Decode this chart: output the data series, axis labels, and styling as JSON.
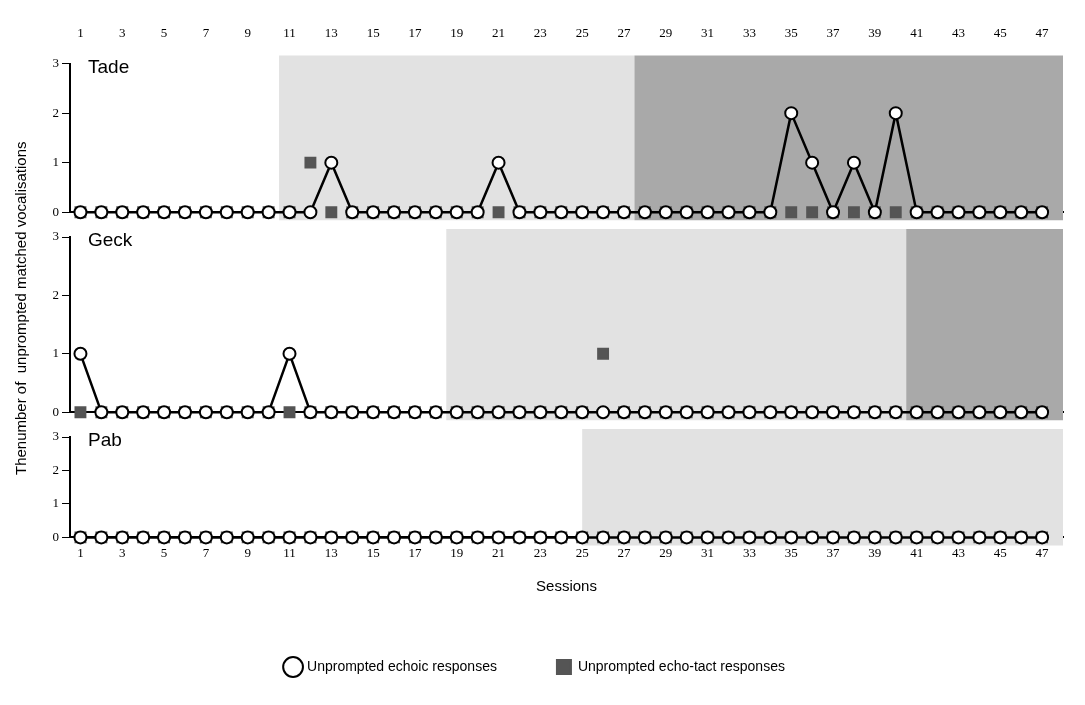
{
  "chart_data": [
    {
      "type": "line",
      "title": "Tade",
      "x": [
        1,
        2,
        3,
        4,
        5,
        6,
        7,
        8,
        9,
        10,
        11,
        12,
        13,
        14,
        15,
        16,
        17,
        18,
        19,
        20,
        21,
        22,
        23,
        24,
        25,
        26,
        27,
        28,
        29,
        30,
        31,
        32,
        33,
        34,
        35,
        36,
        37,
        38,
        39,
        40,
        41,
        42,
        43,
        44,
        45,
        46,
        47
      ],
      "xlim": [
        0.5,
        48
      ],
      "xticks": [
        1,
        3,
        5,
        7,
        9,
        11,
        13,
        15,
        17,
        19,
        21,
        23,
        25,
        27,
        29,
        31,
        33,
        35,
        37,
        39,
        41,
        43,
        45,
        47
      ],
      "x2lim": [
        0.5,
        48
      ],
      "x2ticks": [
        1,
        3,
        5,
        7,
        9,
        11,
        13,
        15,
        17,
        19,
        21,
        23,
        25,
        27,
        29,
        31,
        33,
        35,
        37,
        39,
        41,
        43,
        45,
        47
      ],
      "ylim": [
        0,
        3
      ],
      "yticks": [
        0,
        1,
        2,
        3
      ],
      "tick_labels": "y",
      "grid": false,
      "bands": [
        {
          "axis": "x",
          "from": 10.5,
          "to": 27.5,
          "color": "#e2e2e2"
        },
        {
          "axis": "x",
          "from": 27.5,
          "to": 48,
          "color": "#a9a9a9"
        }
      ],
      "series": [
        {
          "type": "line",
          "color": "#000000",
          "marker": "circle",
          "values": [
            0,
            0,
            0,
            0,
            0,
            0,
            0,
            0,
            0,
            0,
            0,
            0,
            1,
            0,
            0,
            0,
            0,
            0,
            0,
            0,
            1,
            0,
            0,
            0,
            0,
            0,
            0,
            0,
            0,
            0,
            0,
            0,
            0,
            0,
            2,
            1,
            0,
            1,
            0,
            2,
            0,
            0,
            0,
            0,
            0,
            0,
            0
          ]
        },
        {
          "type": "scatter",
          "color": "#555555",
          "marker": "square",
          "values": [
            0,
            0,
            0,
            0,
            0,
            0,
            0,
            0,
            0,
            0,
            0,
            1,
            0,
            0,
            0,
            0,
            0,
            0,
            0,
            0,
            0,
            0,
            0,
            0,
            0,
            0,
            0,
            0,
            0,
            0,
            0,
            0,
            0,
            0,
            0,
            0,
            0,
            0,
            0,
            0,
            0,
            0,
            0,
            0,
            0,
            0,
            0
          ]
        }
      ]
    },
    {
      "type": "line",
      "title": "Geck",
      "ylabel": "Thenumber of  unprompted matched vocalisations",
      "x": [
        1,
        2,
        3,
        4,
        5,
        6,
        7,
        8,
        9,
        10,
        11,
        12,
        13,
        14,
        15,
        16,
        17,
        18,
        19,
        20,
        21,
        22,
        23,
        24,
        25,
        26,
        27,
        28,
        29,
        30,
        31,
        32,
        33,
        34,
        35,
        36,
        37,
        38,
        39,
        40,
        41,
        42,
        43,
        44,
        45,
        46,
        47
      ],
      "xlim": [
        0.5,
        48
      ],
      "xticks": [
        1,
        3,
        5,
        7,
        9,
        11,
        13,
        15,
        17,
        19,
        21,
        23,
        25,
        27,
        29,
        31,
        33,
        35,
        37,
        39,
        41,
        43,
        45,
        47
      ],
      "ylim": [
        0,
        3
      ],
      "yticks": [
        0,
        1,
        2,
        3
      ],
      "tick_labels": "y",
      "grid": false,
      "bands": [
        {
          "axis": "x",
          "from": 18.5,
          "to": 40.5,
          "color": "#e2e2e2"
        },
        {
          "axis": "x",
          "from": 40.5,
          "to": 48,
          "color": "#a9a9a9"
        }
      ],
      "series": [
        {
          "type": "line",
          "color": "#000000",
          "marker": "circle",
          "values": [
            1,
            0,
            0,
            0,
            0,
            0,
            0,
            0,
            0,
            0,
            1,
            0,
            0,
            0,
            0,
            0,
            0,
            0,
            0,
            0,
            0,
            0,
            0,
            0,
            0,
            0,
            0,
            0,
            0,
            0,
            0,
            0,
            0,
            0,
            0,
            0,
            0,
            0,
            0,
            0,
            0,
            0,
            0,
            0,
            0,
            0,
            0
          ]
        },
        {
          "type": "scatter",
          "color": "#555555",
          "marker": "square",
          "values": [
            0,
            0,
            0,
            0,
            0,
            0,
            0,
            0,
            0,
            0,
            0,
            0,
            0,
            0,
            0,
            0,
            0,
            0,
            0,
            0,
            0,
            0,
            0,
            0,
            0,
            1,
            0,
            0,
            0,
            0,
            0,
            0,
            0,
            0,
            0,
            0,
            0,
            0,
            0,
            0,
            0,
            0,
            0,
            0,
            0,
            0,
            0
          ]
        }
      ]
    },
    {
      "type": "line",
      "title": "Pab",
      "xlabel": "Sessions",
      "x": [
        1,
        2,
        3,
        4,
        5,
        6,
        7,
        8,
        9,
        10,
        11,
        12,
        13,
        14,
        15,
        16,
        17,
        18,
        19,
        20,
        21,
        22,
        23,
        24,
        25,
        26,
        27,
        28,
        29,
        30,
        31,
        32,
        33,
        34,
        35,
        36,
        37,
        38,
        39,
        40,
        41,
        42,
        43,
        44,
        45,
        46,
        47
      ],
      "xlim": [
        0.5,
        48
      ],
      "xticks": [
        1,
        3,
        5,
        7,
        9,
        11,
        13,
        15,
        17,
        19,
        21,
        23,
        25,
        27,
        29,
        31,
        33,
        35,
        37,
        39,
        41,
        43,
        45,
        47
      ],
      "ylim": [
        0,
        3
      ],
      "yticks": [
        0,
        1,
        2,
        3
      ],
      "grid": false,
      "legend": "bottom",
      "bands": [
        {
          "axis": "x",
          "from": 25,
          "to": 48,
          "color": "#e2e2e2"
        }
      ],
      "series": [
        {
          "type": "line",
          "name": "Unprompted echoic responses",
          "color": "#000000",
          "marker": "circle",
          "values": [
            0,
            0,
            0,
            0,
            0,
            0,
            0,
            0,
            0,
            0,
            0,
            0,
            0,
            0,
            0,
            0,
            0,
            0,
            0,
            0,
            0,
            0,
            0,
            0,
            0,
            0,
            0,
            0,
            0,
            0,
            0,
            0,
            0,
            0,
            0,
            0,
            0,
            0,
            0,
            0,
            0,
            0,
            0,
            0,
            0,
            0,
            0
          ]
        },
        {
          "type": "scatter",
          "name": "Unprompted echo-tact responses",
          "color": "#555555",
          "marker": "square",
          "values": [
            0,
            0,
            0,
            0,
            0,
            0,
            0,
            0,
            0,
            0,
            0,
            0,
            0,
            0,
            0,
            0,
            0,
            0,
            0,
            0,
            0,
            0,
            0,
            0,
            0,
            0,
            0,
            0,
            0,
            0,
            0,
            0,
            0,
            0,
            0,
            0,
            0,
            0,
            0,
            0,
            0,
            0,
            0,
            0,
            0,
            0,
            0
          ]
        }
      ]
    }
  ]
}
